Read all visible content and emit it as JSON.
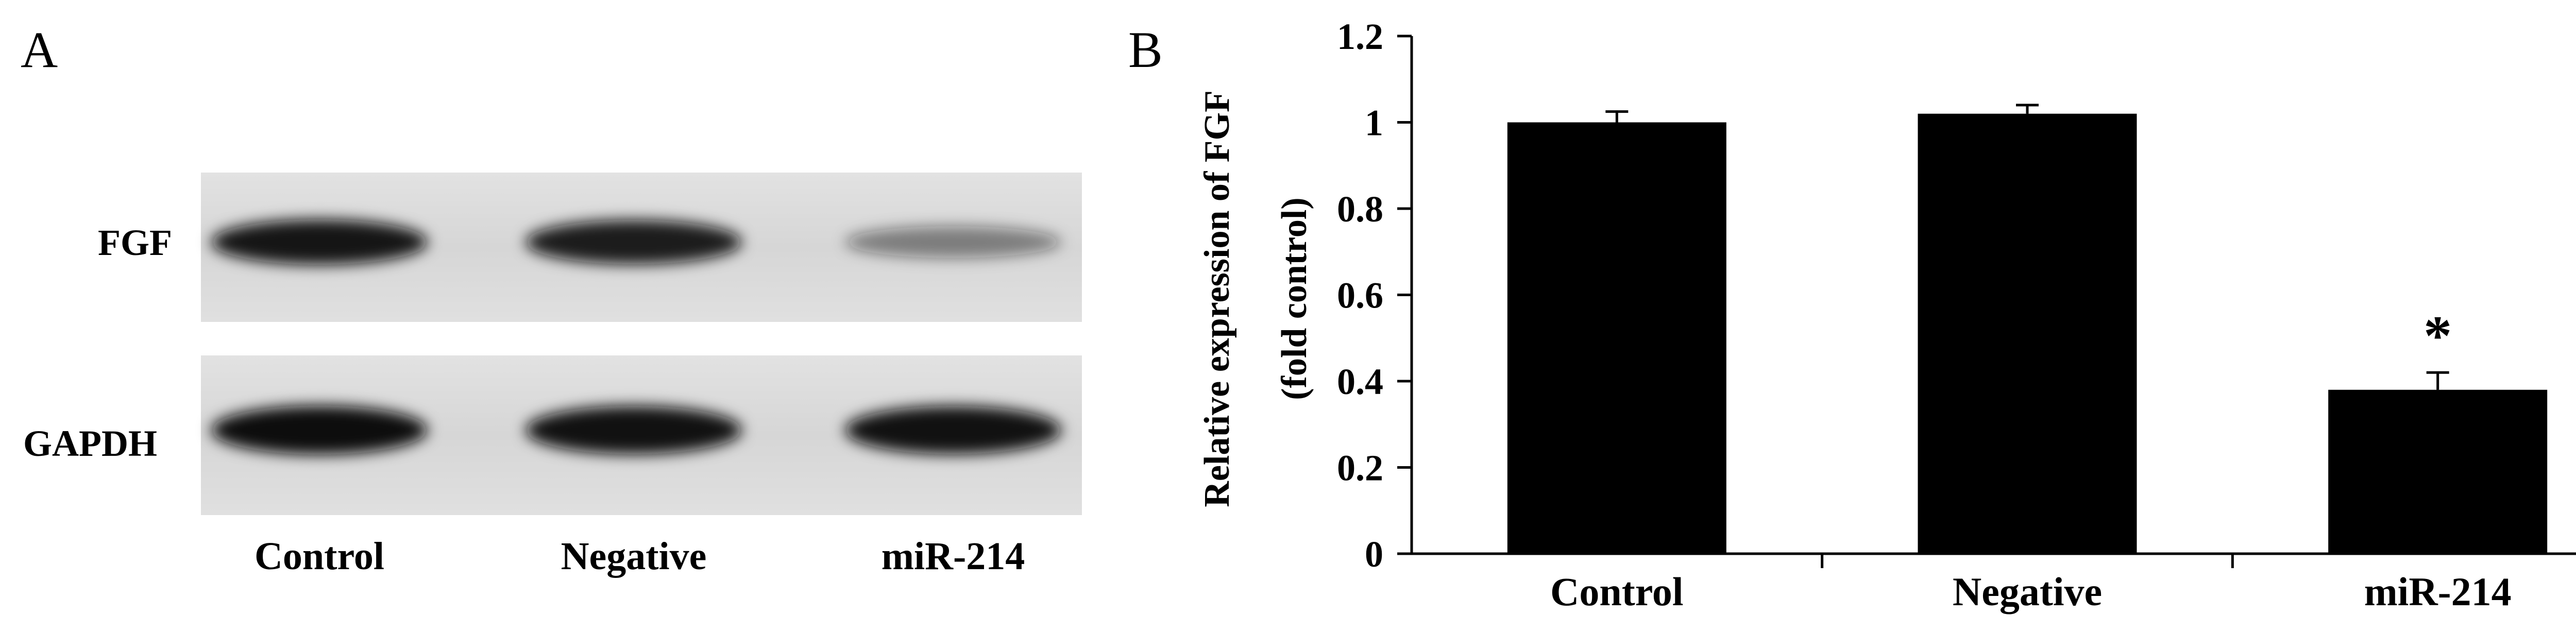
{
  "panel_a": {
    "letter": "A",
    "row_labels": [
      "FGF",
      "GAPDH"
    ],
    "lane_labels": [
      "Control",
      "Negative",
      "miR-214"
    ],
    "band_intensity": {
      "FGF": [
        0.95,
        0.9,
        0.3
      ],
      "GAPDH": [
        1.0,
        0.97,
        0.97
      ]
    },
    "membrane_color": "#dcdcdc",
    "band_color": "#111111"
  },
  "chart_data": {
    "type": "bar",
    "panel_letter": "B",
    "categories": [
      "Control",
      "Negative",
      "miR-214"
    ],
    "values": [
      1.0,
      1.02,
      0.38
    ],
    "errors": [
      0.025,
      0.02,
      0.04
    ],
    "annotations": [
      "",
      "",
      "*"
    ],
    "ylabel_line1": "Relative expression of FGF",
    "ylabel_line2": "(fold control)",
    "ylim": [
      0,
      1.2
    ],
    "yticks": [
      "0",
      "0.2",
      "0.4",
      "0.6",
      "0.8",
      "1",
      "1.2"
    ],
    "bar_color": "#000000",
    "grid": false,
    "legend": "none"
  }
}
